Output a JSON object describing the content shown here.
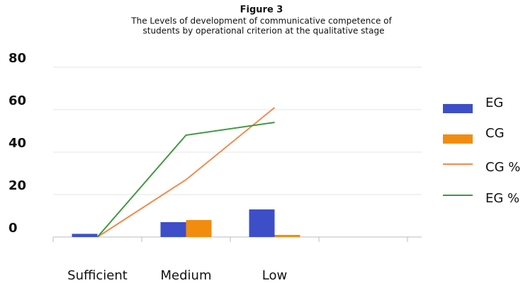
{
  "chart_data": {
    "type": "bar",
    "title": "Figure 3",
    "subtitle": [
      "The Levels of development of communicative competence of",
      "students by operational criterion at the qualitative stage"
    ],
    "categories": [
      "Sufficient",
      "Medium",
      "Low",
      null
    ],
    "series": [
      {
        "name": "EG",
        "type": "bar",
        "color": "#3c4fc9",
        "values": [
          1.5,
          7,
          13,
          null
        ]
      },
      {
        "name": "CG",
        "type": "bar",
        "color": "#f28c0f",
        "values": [
          0,
          8,
          1,
          null
        ]
      },
      {
        "name": "CG %",
        "type": "line",
        "color": "#f28a4c",
        "values": [
          0,
          27,
          61,
          null
        ]
      },
      {
        "name": "EG %",
        "type": "line",
        "color": "#3e9a3e",
        "values": [
          0,
          48,
          54,
          null
        ]
      }
    ],
    "ylim": [
      0,
      80
    ],
    "yticks": [
      0,
      20,
      40,
      60,
      80
    ],
    "grid": true,
    "legend": "right"
  }
}
